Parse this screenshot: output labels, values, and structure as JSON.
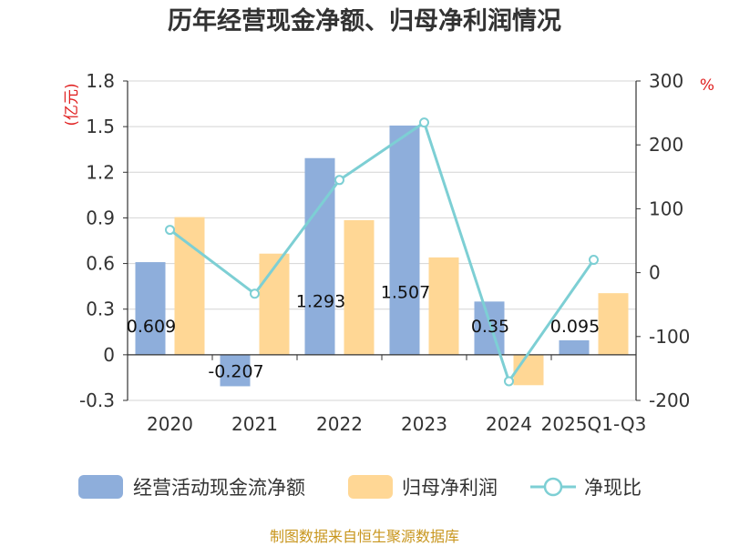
{
  "chart_data": {
    "type": "bar",
    "title": "历年经营现金净额、归母净利润情况",
    "categories": [
      "2020",
      "2021",
      "2022",
      "2023",
      "2024",
      "2025Q1-Q3"
    ],
    "series": [
      {
        "name": "经营活动现金流净额",
        "kind": "bar",
        "axis": "left",
        "color": "#8eaedb",
        "values": [
          0.609,
          -0.207,
          1.293,
          1.507,
          0.35,
          0.095
        ],
        "labels": [
          "0.609",
          "-0.207",
          "1.293",
          "1.507",
          "0.35",
          "0.095"
        ]
      },
      {
        "name": "归母净利润",
        "kind": "bar",
        "axis": "left",
        "color": "#ffd795",
        "values": [
          0.905,
          0.665,
          0.885,
          0.64,
          -0.2,
          0.405
        ]
      },
      {
        "name": "净现比",
        "kind": "line",
        "axis": "right",
        "color": "#7dcfd4",
        "values": [
          67,
          -33,
          145,
          235,
          -170,
          20
        ]
      }
    ],
    "left_axis": {
      "unit": "(亿元)",
      "ylim": [
        -0.3,
        1.8
      ],
      "ticks": [
        1.8,
        1.5,
        1.2,
        0.9,
        0.6,
        0.3,
        0,
        -0.3
      ],
      "tick_labels": [
        "1.8",
        "1.5",
        "1.2",
        "0.9",
        "0.6",
        "0.3",
        "0",
        "-0.3"
      ]
    },
    "right_axis": {
      "unit": "%",
      "ylim": [
        -200,
        300
      ],
      "ticks": [
        300,
        200,
        100,
        0,
        -100,
        -200
      ],
      "tick_labels": [
        "300",
        "200",
        "100",
        "0",
        "-100",
        "-200"
      ]
    },
    "grid": true,
    "legend_position": "bottom"
  },
  "source_text": "制图数据来自恒生聚源数据库"
}
